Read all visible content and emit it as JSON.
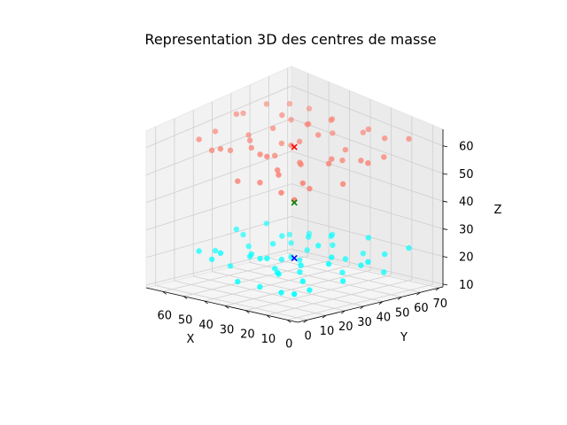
{
  "chart_data": {
    "type": "scatter",
    "projection": "3d",
    "title": "Representation 3D des centres de masse",
    "xlabel": "X",
    "ylabel": "Y",
    "zlabel": "Z",
    "xlim": [
      -5,
      68
    ],
    "ylim": [
      -5,
      72
    ],
    "zlim": [
      9,
      66
    ],
    "xticks": [
      0,
      10,
      20,
      30,
      40,
      50,
      60
    ],
    "yticks": [
      0,
      10,
      20,
      30,
      40,
      50,
      60,
      70
    ],
    "zticks": [
      10,
      20,
      30,
      40,
      50,
      60
    ],
    "grid": true,
    "series": [
      {
        "color": "#fa8072",
        "marker": "circle",
        "points": [
          [
            3,
            2,
            58
          ],
          [
            8,
            12,
            60
          ],
          [
            12,
            5,
            57
          ],
          [
            18,
            22,
            61
          ],
          [
            25,
            8,
            56
          ],
          [
            30,
            30,
            62
          ],
          [
            5,
            30,
            55
          ],
          [
            10,
            45,
            58
          ],
          [
            15,
            35,
            60
          ],
          [
            22,
            50,
            57
          ],
          [
            28,
            15,
            63
          ],
          [
            35,
            40,
            59
          ],
          [
            40,
            20,
            61
          ],
          [
            45,
            55,
            58
          ],
          [
            50,
            10,
            60
          ],
          [
            55,
            35,
            57
          ],
          [
            60,
            50,
            62
          ],
          [
            62,
            25,
            59
          ],
          [
            38,
            60,
            60
          ],
          [
            20,
            60,
            62
          ],
          [
            8,
            55,
            57
          ],
          [
            48,
            45,
            63
          ],
          [
            33,
            5,
            55
          ],
          [
            42,
            65,
            58
          ],
          [
            58,
            60,
            60
          ],
          [
            2,
            40,
            61
          ],
          [
            12,
            20,
            54
          ],
          [
            26,
            40,
            64
          ],
          [
            36,
            28,
            57
          ],
          [
            46,
            38,
            61
          ],
          [
            52,
            22,
            56
          ],
          [
            64,
            42,
            60
          ],
          [
            16,
            8,
            62
          ],
          [
            24,
            28,
            58
          ],
          [
            30,
            52,
            60
          ],
          [
            44,
            8,
            63
          ],
          [
            54,
            66,
            58
          ],
          [
            6,
            66,
            61
          ],
          [
            18,
            44,
            56
          ],
          [
            38,
            48,
            62
          ],
          [
            48,
            28,
            59
          ],
          [
            58,
            12,
            61
          ],
          [
            14,
            62,
            60
          ],
          [
            28,
            66,
            57
          ],
          [
            34,
            18,
            61
          ],
          [
            40,
            36,
            58
          ],
          [
            60,
            34,
            63
          ],
          [
            22,
            14,
            60
          ],
          [
            50,
            52,
            59
          ],
          [
            10,
            28,
            62
          ]
        ]
      },
      {
        "color": "#00ffff",
        "marker": "circle",
        "points": [
          [
            3,
            2,
            18
          ],
          [
            8,
            12,
            20
          ],
          [
            12,
            5,
            16
          ],
          [
            18,
            22,
            22
          ],
          [
            25,
            8,
            15
          ],
          [
            30,
            30,
            21
          ],
          [
            5,
            30,
            17
          ],
          [
            10,
            45,
            19
          ],
          [
            15,
            35,
            23
          ],
          [
            22,
            50,
            18
          ],
          [
            28,
            15,
            24
          ],
          [
            35,
            40,
            17
          ],
          [
            40,
            20,
            22
          ],
          [
            45,
            55,
            16
          ],
          [
            50,
            10,
            20
          ],
          [
            55,
            35,
            19
          ],
          [
            60,
            50,
            23
          ],
          [
            62,
            25,
            18
          ],
          [
            38,
            60,
            21
          ],
          [
            20,
            60,
            24
          ],
          [
            8,
            55,
            15
          ],
          [
            48,
            45,
            22
          ],
          [
            33,
            5,
            16
          ],
          [
            42,
            65,
            20
          ],
          [
            58,
            60,
            18
          ],
          [
            2,
            40,
            23
          ],
          [
            12,
            20,
            14
          ],
          [
            26,
            40,
            24
          ],
          [
            36,
            28,
            16
          ],
          [
            46,
            38,
            21
          ],
          [
            52,
            22,
            15
          ],
          [
            64,
            42,
            20
          ],
          [
            16,
            8,
            22
          ],
          [
            24,
            28,
            17
          ],
          [
            30,
            52,
            21
          ],
          [
            44,
            8,
            24
          ],
          [
            54,
            66,
            18
          ],
          [
            6,
            66,
            22
          ],
          [
            18,
            44,
            15
          ],
          [
            38,
            48,
            23
          ],
          [
            48,
            28,
            18
          ],
          [
            58,
            12,
            21
          ],
          [
            14,
            62,
            19
          ],
          [
            28,
            66,
            16
          ],
          [
            34,
            18,
            22
          ],
          [
            40,
            36,
            17
          ],
          [
            60,
            34,
            24
          ],
          [
            22,
            14,
            20
          ],
          [
            50,
            52,
            18
          ],
          [
            10,
            28,
            23
          ]
        ]
      }
    ],
    "centroids": [
      {
        "color": "#ff0000",
        "marker": "x",
        "point": [
          33,
          35,
          59
        ]
      },
      {
        "color": "#0000ff",
        "marker": "x",
        "point": [
          33,
          35,
          19
        ]
      },
      {
        "color": "#008000",
        "marker": "x",
        "point": [
          33,
          35,
          39
        ]
      }
    ]
  }
}
